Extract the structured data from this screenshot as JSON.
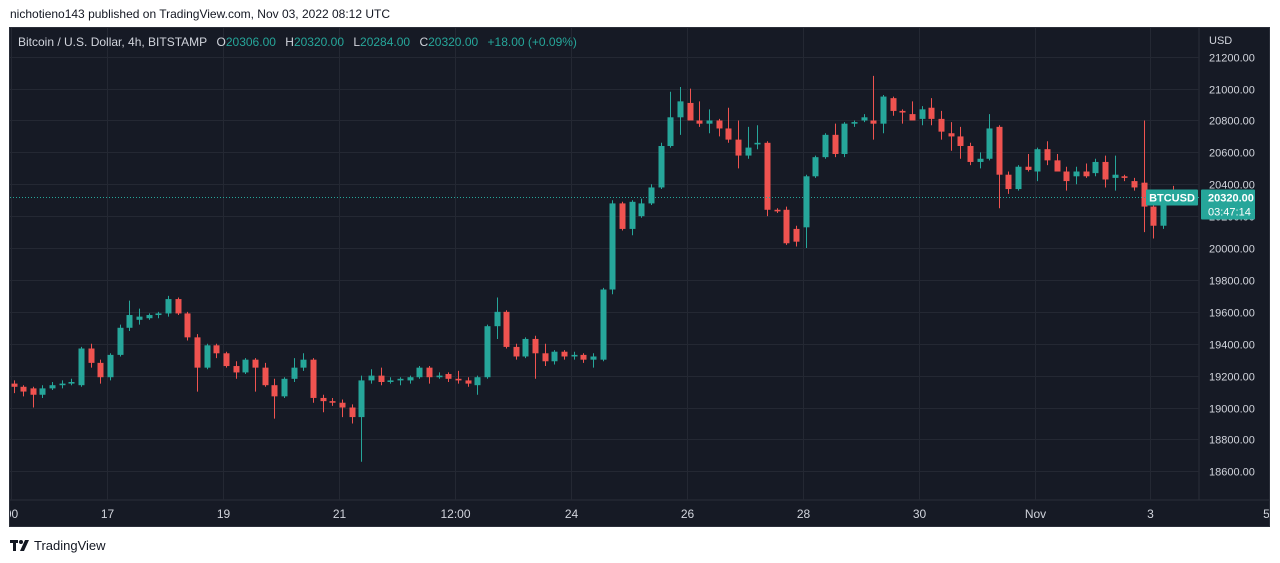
{
  "header": {
    "published_text": "nichotieno143 published on TradingView.com, Nov 03, 2022 08:12 UTC"
  },
  "legend": {
    "symbol": "Bitcoin / U.S. Dollar, 4h, BITSTAMP",
    "o_label": "O",
    "o_value": "20306.00",
    "h_label": "H",
    "h_value": "20320.00",
    "l_label": "L",
    "l_value": "20284.00",
    "c_label": "C",
    "c_value": "20320.00",
    "change": "+18.00 (+0.09%)"
  },
  "footer": {
    "brand": "TradingView"
  },
  "colors": {
    "up": "#26a69a",
    "down": "#ef5350",
    "background": "#161a25",
    "grid": "#242833",
    "axis_text": "#d1d4dc",
    "price_line": "#26a69a"
  },
  "chart_data": {
    "type": "candlestick",
    "currency_label": "USD",
    "ylim": [
      18420,
      21380
    ],
    "y_ticks": [
      18600,
      18800,
      19000,
      19200,
      19400,
      19600,
      19800,
      20000,
      20200,
      20400,
      20600,
      20800,
      21000,
      21200
    ],
    "y_tick_labels": [
      "18600.00",
      "18800.00",
      "19000.00",
      "19200.00",
      "19400.00",
      "19600.00",
      "19800.00",
      "20000.00",
      "20200.00",
      "20400.00",
      "20600.00",
      "20800.00",
      "21000.00",
      "21200.00"
    ],
    "x_ticks": [
      {
        "label": "00",
        "index": -0.3
      },
      {
        "label": "17",
        "index": 9.7
      },
      {
        "label": "19",
        "index": 21.7
      },
      {
        "label": "21",
        "index": 33.7
      },
      {
        "label": "12:00",
        "index": 45.7
      },
      {
        "label": "24",
        "index": 57.7
      },
      {
        "label": "26",
        "index": 69.7
      },
      {
        "label": "28",
        "index": 81.7
      },
      {
        "label": "30",
        "index": 93.7
      },
      {
        "label": "Nov",
        "index": 105.7
      },
      {
        "label": "3",
        "index": 117.7
      },
      {
        "label": "5",
        "index": 129.7
      }
    ],
    "last_price": {
      "label": "BTCUSD",
      "value": 20320,
      "value_text": "20320.00",
      "countdown": "03:47:14"
    },
    "candles": [
      {
        "o": 19150,
        "h": 19170,
        "l": 19090,
        "c": 19130
      },
      {
        "o": 19130,
        "h": 19140,
        "l": 19070,
        "c": 19100
      },
      {
        "o": 19120,
        "h": 19130,
        "l": 19000,
        "c": 19080
      },
      {
        "o": 19080,
        "h": 19140,
        "l": 19060,
        "c": 19120
      },
      {
        "o": 19120,
        "h": 19160,
        "l": 19110,
        "c": 19140
      },
      {
        "o": 19140,
        "h": 19170,
        "l": 19120,
        "c": 19150
      },
      {
        "o": 19150,
        "h": 19180,
        "l": 19140,
        "c": 19160
      },
      {
        "o": 19140,
        "h": 19380,
        "l": 19130,
        "c": 19370
      },
      {
        "o": 19370,
        "h": 19400,
        "l": 19250,
        "c": 19280
      },
      {
        "o": 19280,
        "h": 19300,
        "l": 19150,
        "c": 19190
      },
      {
        "o": 19190,
        "h": 19340,
        "l": 19170,
        "c": 19330
      },
      {
        "o": 19330,
        "h": 19520,
        "l": 19320,
        "c": 19500
      },
      {
        "o": 19500,
        "h": 19670,
        "l": 19480,
        "c": 19580
      },
      {
        "o": 19550,
        "h": 19620,
        "l": 19520,
        "c": 19570
      },
      {
        "o": 19560,
        "h": 19590,
        "l": 19550,
        "c": 19580
      },
      {
        "o": 19580,
        "h": 19600,
        "l": 19560,
        "c": 19590
      },
      {
        "o": 19590,
        "h": 19700,
        "l": 19570,
        "c": 19680
      },
      {
        "o": 19680,
        "h": 19690,
        "l": 19580,
        "c": 19590
      },
      {
        "o": 19590,
        "h": 19600,
        "l": 19420,
        "c": 19440
      },
      {
        "o": 19440,
        "h": 19460,
        "l": 19100,
        "c": 19250
      },
      {
        "o": 19250,
        "h": 19400,
        "l": 19240,
        "c": 19390
      },
      {
        "o": 19390,
        "h": 19400,
        "l": 19310,
        "c": 19340
      },
      {
        "o": 19340,
        "h": 19350,
        "l": 19250,
        "c": 19260
      },
      {
        "o": 19260,
        "h": 19290,
        "l": 19180,
        "c": 19220
      },
      {
        "o": 19220,
        "h": 19310,
        "l": 19210,
        "c": 19300
      },
      {
        "o": 19300,
        "h": 19310,
        "l": 19100,
        "c": 19250
      },
      {
        "o": 19250,
        "h": 19280,
        "l": 19130,
        "c": 19140
      },
      {
        "o": 19140,
        "h": 19180,
        "l": 18930,
        "c": 19070
      },
      {
        "o": 19070,
        "h": 19190,
        "l": 19060,
        "c": 19180
      },
      {
        "o": 19180,
        "h": 19310,
        "l": 19160,
        "c": 19250
      },
      {
        "o": 19250,
        "h": 19340,
        "l": 19230,
        "c": 19300
      },
      {
        "o": 19300,
        "h": 19310,
        "l": 19030,
        "c": 19060
      },
      {
        "o": 19060,
        "h": 19080,
        "l": 18970,
        "c": 19040
      },
      {
        "o": 19040,
        "h": 19060,
        "l": 19010,
        "c": 19030
      },
      {
        "o": 19030,
        "h": 19050,
        "l": 18940,
        "c": 19000
      },
      {
        "o": 19000,
        "h": 19020,
        "l": 18900,
        "c": 18940
      },
      {
        "o": 18940,
        "h": 19200,
        "l": 18660,
        "c": 19170
      },
      {
        "o": 19170,
        "h": 19240,
        "l": 19150,
        "c": 19200
      },
      {
        "o": 19200,
        "h": 19250,
        "l": 19140,
        "c": 19160
      },
      {
        "o": 19160,
        "h": 19190,
        "l": 19150,
        "c": 19170
      },
      {
        "o": 19170,
        "h": 19190,
        "l": 19140,
        "c": 19180
      },
      {
        "o": 19170,
        "h": 19200,
        "l": 19150,
        "c": 19190
      },
      {
        "o": 19190,
        "h": 19260,
        "l": 19180,
        "c": 19250
      },
      {
        "o": 19250,
        "h": 19260,
        "l": 19150,
        "c": 19190
      },
      {
        "o": 19190,
        "h": 19220,
        "l": 19180,
        "c": 19200
      },
      {
        "o": 19210,
        "h": 19220,
        "l": 19160,
        "c": 19180
      },
      {
        "o": 19180,
        "h": 19230,
        "l": 19150,
        "c": 19170
      },
      {
        "o": 19170,
        "h": 19190,
        "l": 19130,
        "c": 19150
      },
      {
        "o": 19140,
        "h": 19200,
        "l": 19080,
        "c": 19190
      },
      {
        "o": 19190,
        "h": 19520,
        "l": 19180,
        "c": 19510
      },
      {
        "o": 19510,
        "h": 19690,
        "l": 19430,
        "c": 19600
      },
      {
        "o": 19600,
        "h": 19610,
        "l": 19370,
        "c": 19380
      },
      {
        "o": 19380,
        "h": 19400,
        "l": 19300,
        "c": 19320
      },
      {
        "o": 19320,
        "h": 19440,
        "l": 19310,
        "c": 19430
      },
      {
        "o": 19430,
        "h": 19450,
        "l": 19180,
        "c": 19340
      },
      {
        "o": 19340,
        "h": 19400,
        "l": 19260,
        "c": 19290
      },
      {
        "o": 19290,
        "h": 19360,
        "l": 19270,
        "c": 19350
      },
      {
        "o": 19350,
        "h": 19360,
        "l": 19300,
        "c": 19320
      },
      {
        "o": 19320,
        "h": 19350,
        "l": 19300,
        "c": 19330
      },
      {
        "o": 19330,
        "h": 19340,
        "l": 19280,
        "c": 19300
      },
      {
        "o": 19300,
        "h": 19340,
        "l": 19250,
        "c": 19320
      },
      {
        "o": 19300,
        "h": 19750,
        "l": 19290,
        "c": 19740
      },
      {
        "o": 19740,
        "h": 20300,
        "l": 19710,
        "c": 20280
      },
      {
        "o": 20280,
        "h": 20290,
        "l": 20110,
        "c": 20120
      },
      {
        "o": 20120,
        "h": 20300,
        "l": 20080,
        "c": 20290
      },
      {
        "o": 20200,
        "h": 20310,
        "l": 20190,
        "c": 20280
      },
      {
        "o": 20280,
        "h": 20400,
        "l": 20270,
        "c": 20380
      },
      {
        "o": 20380,
        "h": 20660,
        "l": 20370,
        "c": 20640
      },
      {
        "o": 20640,
        "h": 20980,
        "l": 20630,
        "c": 20820
      },
      {
        "o": 20820,
        "h": 21010,
        "l": 20710,
        "c": 20920
      },
      {
        "o": 20910,
        "h": 21000,
        "l": 20810,
        "c": 20800
      },
      {
        "o": 20800,
        "h": 20920,
        "l": 20760,
        "c": 20780
      },
      {
        "o": 20780,
        "h": 20870,
        "l": 20720,
        "c": 20800
      },
      {
        "o": 20800,
        "h": 20810,
        "l": 20700,
        "c": 20750
      },
      {
        "o": 20750,
        "h": 20880,
        "l": 20660,
        "c": 20680
      },
      {
        "o": 20680,
        "h": 20800,
        "l": 20500,
        "c": 20580
      },
      {
        "o": 20580,
        "h": 20760,
        "l": 20560,
        "c": 20630
      },
      {
        "o": 20650,
        "h": 20770,
        "l": 20620,
        "c": 20660
      },
      {
        "o": 20660,
        "h": 20670,
        "l": 20200,
        "c": 20240
      },
      {
        "o": 20240,
        "h": 20250,
        "l": 20220,
        "c": 20230
      },
      {
        "o": 20240,
        "h": 20260,
        "l": 20020,
        "c": 20030
      },
      {
        "o": 20120,
        "h": 20140,
        "l": 20010,
        "c": 20040
      },
      {
        "o": 20130,
        "h": 20460,
        "l": 20000,
        "c": 20450
      },
      {
        "o": 20450,
        "h": 20580,
        "l": 20440,
        "c": 20570
      },
      {
        "o": 20570,
        "h": 20720,
        "l": 20560,
        "c": 20710
      },
      {
        "o": 20710,
        "h": 20780,
        "l": 20570,
        "c": 20590
      },
      {
        "o": 20590,
        "h": 20790,
        "l": 20570,
        "c": 20780
      },
      {
        "o": 20780,
        "h": 20800,
        "l": 20760,
        "c": 20790
      },
      {
        "o": 20800,
        "h": 20840,
        "l": 20790,
        "c": 20820
      },
      {
        "o": 20800,
        "h": 21080,
        "l": 20680,
        "c": 20780
      },
      {
        "o": 20780,
        "h": 20960,
        "l": 20720,
        "c": 20950
      },
      {
        "o": 20940,
        "h": 20950,
        "l": 20830,
        "c": 20860
      },
      {
        "o": 20860,
        "h": 20870,
        "l": 20780,
        "c": 20850
      },
      {
        "o": 20840,
        "h": 20920,
        "l": 20820,
        "c": 20800
      },
      {
        "o": 20810,
        "h": 20890,
        "l": 20770,
        "c": 20870
      },
      {
        "o": 20880,
        "h": 20940,
        "l": 20770,
        "c": 20810
      },
      {
        "o": 20810,
        "h": 20860,
        "l": 20680,
        "c": 20730
      },
      {
        "o": 20720,
        "h": 20790,
        "l": 20610,
        "c": 20700
      },
      {
        "o": 20700,
        "h": 20760,
        "l": 20560,
        "c": 20640
      },
      {
        "o": 20640,
        "h": 20660,
        "l": 20520,
        "c": 20540
      },
      {
        "o": 20540,
        "h": 20600,
        "l": 20500,
        "c": 20560
      },
      {
        "o": 20560,
        "h": 20840,
        "l": 20550,
        "c": 20750
      },
      {
        "o": 20760,
        "h": 20770,
        "l": 20250,
        "c": 20460
      },
      {
        "o": 20460,
        "h": 20480,
        "l": 20340,
        "c": 20370
      },
      {
        "o": 20370,
        "h": 20520,
        "l": 20360,
        "c": 20510
      },
      {
        "o": 20510,
        "h": 20590,
        "l": 20480,
        "c": 20490
      },
      {
        "o": 20480,
        "h": 20630,
        "l": 20420,
        "c": 20620
      },
      {
        "o": 20620,
        "h": 20670,
        "l": 20520,
        "c": 20550
      },
      {
        "o": 20550,
        "h": 20590,
        "l": 20490,
        "c": 20480
      },
      {
        "o": 20480,
        "h": 20510,
        "l": 20360,
        "c": 20420
      },
      {
        "o": 20450,
        "h": 20510,
        "l": 20400,
        "c": 20480
      },
      {
        "o": 20480,
        "h": 20530,
        "l": 20440,
        "c": 20450
      },
      {
        "o": 20470,
        "h": 20560,
        "l": 20450,
        "c": 20540
      },
      {
        "o": 20540,
        "h": 20580,
        "l": 20380,
        "c": 20430
      },
      {
        "o": 20440,
        "h": 20580,
        "l": 20360,
        "c": 20460
      },
      {
        "o": 20450,
        "h": 20460,
        "l": 20420,
        "c": 20440
      },
      {
        "o": 20420,
        "h": 20440,
        "l": 20360,
        "c": 20380
      },
      {
        "o": 20410,
        "h": 20800,
        "l": 20100,
        "c": 20260
      },
      {
        "o": 20260,
        "h": 20300,
        "l": 20060,
        "c": 20140
      },
      {
        "o": 20140,
        "h": 20320,
        "l": 20120,
        "c": 20300
      },
      {
        "o": 20320,
        "h": 20390,
        "l": 20280,
        "c": 20290
      },
      {
        "o": 20306,
        "h": 20320,
        "l": 20284,
        "c": 20320
      }
    ]
  }
}
